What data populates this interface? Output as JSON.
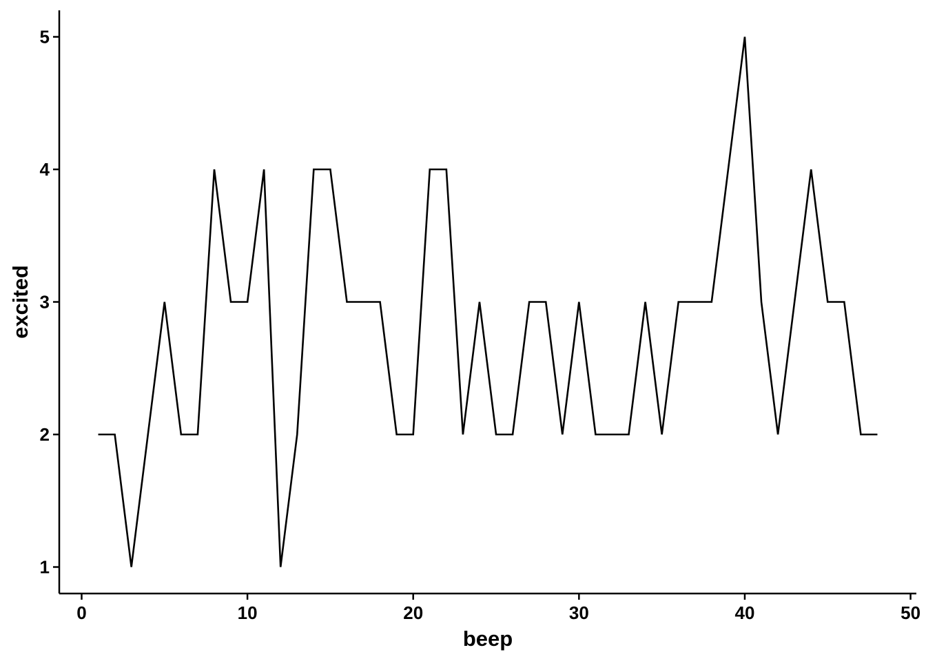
{
  "chart_data": {
    "type": "line",
    "title": "",
    "xlabel": "beep",
    "ylabel": "excited",
    "xlim": [
      -1.35,
      50.35
    ],
    "ylim": [
      0.8,
      5.2
    ],
    "x_ticks": [
      0,
      10,
      20,
      30,
      40,
      50
    ],
    "y_ticks": [
      1,
      2,
      3,
      4,
      5
    ],
    "x_tick_labels": [
      "0",
      "10",
      "20",
      "30",
      "40",
      "50"
    ],
    "y_tick_labels": [
      "1",
      "2",
      "3",
      "4",
      "5"
    ],
    "grid": false,
    "legend": "none",
    "line_color": "#000000",
    "x": [
      1,
      2,
      3,
      4,
      5,
      6,
      7,
      8,
      9,
      10,
      11,
      12,
      13,
      14,
      15,
      16,
      17,
      18,
      19,
      20,
      21,
      22,
      23,
      24,
      25,
      26,
      27,
      28,
      29,
      30,
      31,
      32,
      33,
      34,
      35,
      36,
      37,
      38,
      39,
      40,
      41,
      42,
      43,
      44,
      45,
      46,
      47,
      48
    ],
    "values": [
      2,
      2,
      1,
      2,
      3,
      2,
      2,
      4,
      3,
      3,
      4,
      1,
      2,
      4,
      4,
      3,
      3,
      3,
      2,
      2,
      4,
      4,
      2,
      3,
      2,
      2,
      3,
      3,
      2,
      3,
      2,
      2,
      2,
      3,
      2,
      3,
      3,
      3,
      4,
      5,
      3,
      2,
      3,
      4,
      3,
      3,
      2,
      2
    ]
  }
}
